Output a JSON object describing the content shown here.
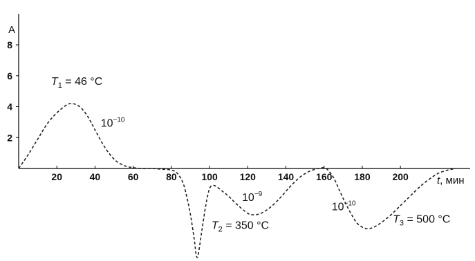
{
  "chart_data": {
    "type": "line",
    "ylabel": "A",
    "xlabel_italic": "t",
    "xlabel_unit": ", мин",
    "x_ticks": [
      20,
      40,
      60,
      80,
      100,
      120,
      140,
      160,
      180,
      200
    ],
    "y_ticks": [
      2,
      4,
      6,
      8
    ],
    "xlim": [
      0,
      230
    ],
    "ylim": [
      -6,
      10
    ],
    "series": [
      {
        "x": [
          0,
          5,
          10,
          15,
          20,
          25,
          28,
          32,
          36,
          40,
          45,
          50,
          55,
          60,
          65,
          70,
          75,
          80,
          83,
          86,
          88,
          90,
          92,
          93,
          94,
          96,
          98,
          100,
          102,
          104,
          107,
          110,
          115,
          120,
          123,
          127,
          132,
          137,
          142,
          147,
          152,
          157,
          160,
          162,
          165,
          168,
          171,
          174,
          177,
          180,
          183,
          186,
          190,
          195,
          200,
          205,
          210,
          215,
          220,
          225,
          229
        ],
        "y": [
          0,
          0.9,
          1.9,
          2.9,
          3.6,
          4.1,
          4.2,
          4.0,
          3.4,
          2.5,
          1.4,
          0.6,
          0.2,
          0.05,
          0.0,
          0.0,
          -0.05,
          -0.1,
          -0.3,
          -0.9,
          -1.8,
          -3.0,
          -4.6,
          -5.6,
          -5.6,
          -4.0,
          -2.4,
          -1.3,
          -1.1,
          -1.2,
          -1.5,
          -1.8,
          -2.4,
          -2.9,
          -3.0,
          -2.9,
          -2.5,
          -1.9,
          -1.2,
          -0.6,
          -0.2,
          0.0,
          0.05,
          -0.1,
          -0.6,
          -1.4,
          -2.2,
          -2.9,
          -3.5,
          -3.8,
          -3.9,
          -3.8,
          -3.5,
          -3.0,
          -2.4,
          -1.8,
          -1.2,
          -0.7,
          -0.3,
          -0.1,
          0.0
        ]
      }
    ],
    "annotations": [
      {
        "id": "t1",
        "label_base": "T",
        "label_sub": "1",
        "label_rest": " = 46 °C",
        "x": 17,
        "y": 5.4
      },
      {
        "id": "r1",
        "label_base": "10",
        "label_sup": "−10",
        "x": 43,
        "y": 2.7
      },
      {
        "id": "r2",
        "label_base": "10",
        "label_sup": "−9",
        "x": 117,
        "y": -2.1
      },
      {
        "id": "t2",
        "label_base": "T",
        "label_sub": "2",
        "label_rest": " = 350 °C",
        "x": 101,
        "y": -3.9
      },
      {
        "id": "r3",
        "label_base": "10",
        "label_sup": "−10",
        "x": 164,
        "y": -2.7
      },
      {
        "id": "t3",
        "label_base": "T",
        "label_sub": "3",
        "label_rest": " = 500 °C",
        "x": 196,
        "y": -3.5
      }
    ]
  }
}
